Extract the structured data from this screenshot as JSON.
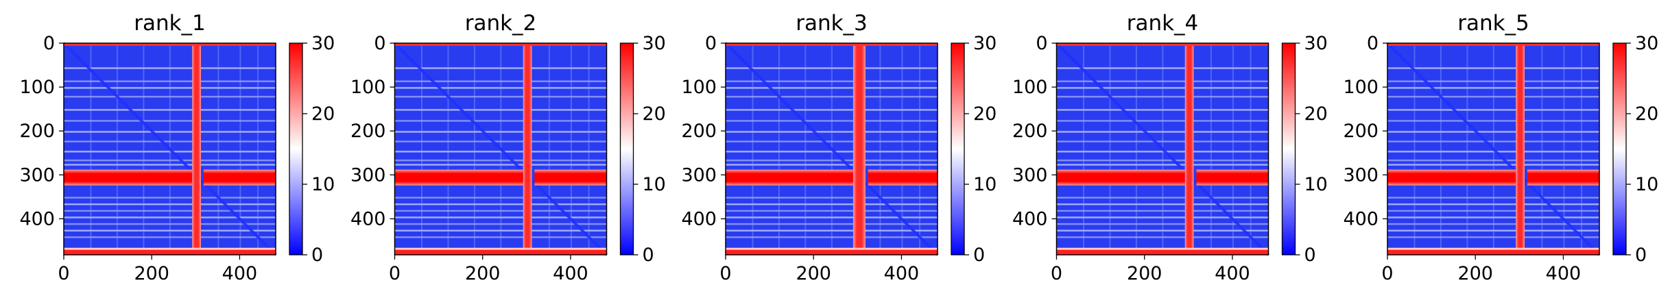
{
  "chart_data": [
    {
      "type": "heatmap",
      "title": "rank_1",
      "xticks": [
        0,
        200,
        400
      ],
      "yticks": [
        0,
        100,
        200,
        300,
        400
      ],
      "xlim": [
        0,
        482
      ],
      "ylim": [
        482,
        0
      ],
      "colorbar": {
        "ticks": [
          0,
          10,
          20,
          30
        ],
        "range": [
          0,
          30
        ],
        "colormap": "bwr"
      }
    },
    {
      "type": "heatmap",
      "title": "rank_2",
      "xticks": [
        0,
        200,
        400
      ],
      "yticks": [
        0,
        100,
        200,
        300,
        400
      ],
      "xlim": [
        0,
        482
      ],
      "ylim": [
        482,
        0
      ],
      "colorbar": {
        "ticks": [
          0,
          10,
          20,
          30
        ],
        "range": [
          0,
          30
        ],
        "colormap": "bwr"
      }
    },
    {
      "type": "heatmap",
      "title": "rank_3",
      "xticks": [
        0,
        200,
        400
      ],
      "yticks": [
        0,
        100,
        200,
        300,
        400
      ],
      "xlim": [
        0,
        482
      ],
      "ylim": [
        482,
        0
      ],
      "colorbar": {
        "ticks": [
          0,
          10,
          20,
          30
        ],
        "range": [
          0,
          30
        ],
        "colormap": "bwr"
      }
    },
    {
      "type": "heatmap",
      "title": "rank_4",
      "xticks": [
        0,
        200,
        400
      ],
      "yticks": [
        0,
        100,
        200,
        300,
        400
      ],
      "xlim": [
        0,
        482
      ],
      "ylim": [
        482,
        0
      ],
      "colorbar": {
        "ticks": [
          0,
          10,
          20,
          30
        ],
        "range": [
          0,
          30
        ],
        "colormap": "bwr"
      }
    },
    {
      "type": "heatmap",
      "title": "rank_5",
      "xticks": [
        0,
        200,
        400
      ],
      "yticks": [
        0,
        100,
        200,
        300,
        400
      ],
      "xlim": [
        0,
        482
      ],
      "ylim": [
        482,
        0
      ],
      "colorbar": {
        "ticks": [
          0,
          10,
          20,
          30
        ],
        "range": [
          0,
          30
        ],
        "colormap": "bwr"
      }
    }
  ],
  "colors": {
    "low": "#0000ff",
    "mid": "#ffffff",
    "high": "#ff0000",
    "background": "#2a3cf0"
  }
}
